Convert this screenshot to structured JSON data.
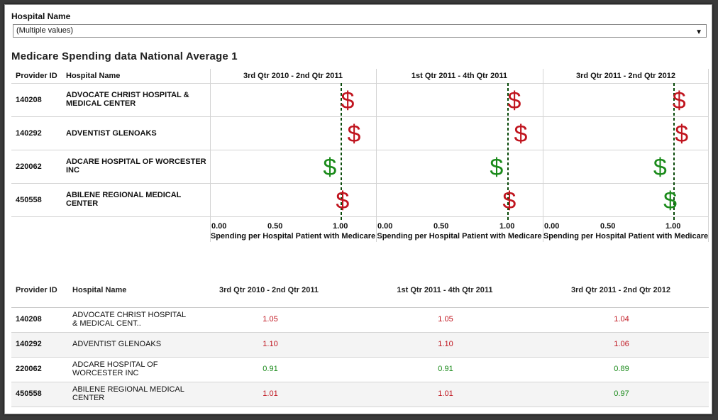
{
  "filter": {
    "label": "Hospital Name",
    "selected": "(Multiple values)"
  },
  "title": "Medicare Spending data National Average 1",
  "headers": {
    "provider_id": "Provider ID",
    "hospital_name": "Hospital Name"
  },
  "periods": [
    "3rd Qtr 2010 - 2nd Qtr 2011",
    "1st Qtr 2011 - 4th Qtr 2011",
    "3rd Qtr 2011 - 2nd Qtr 2012"
  ],
  "axis": {
    "label": "Spending per Hospital Patient with Medicare",
    "ticks": [
      "0.00",
      "0.50",
      "1.00"
    ]
  },
  "colors": {
    "above": "#c0141e",
    "below": "#1a8a1a",
    "refline": "#0a4a0a"
  },
  "chart_data": {
    "type": "scatter",
    "marker": "$",
    "reference_line": 1.0,
    "xlim": [
      0,
      1.0
    ],
    "xlabel": "Spending per Hospital Patient with Medicare",
    "categories": [
      "140208",
      "140292",
      "220062",
      "450558"
    ],
    "series": [
      {
        "name": "3rd Qtr 2010 - 2nd Qtr 2011",
        "values": [
          1.05,
          1.1,
          0.91,
          1.01
        ]
      },
      {
        "name": "1st Qtr 2011 - 4th Qtr 2011",
        "values": [
          1.05,
          1.1,
          0.91,
          1.01
        ]
      },
      {
        "name": "3rd Qtr 2011 - 2nd Qtr 2012",
        "values": [
          1.04,
          1.06,
          0.89,
          0.97
        ]
      }
    ]
  },
  "chart_rows": [
    {
      "id": "140208",
      "name": "ADVOCATE CHRIST HOSPITAL & MEDICAL CENTER"
    },
    {
      "id": "140292",
      "name": "ADVENTIST GLENOAKS"
    },
    {
      "id": "220062",
      "name": "ADCARE HOSPITAL OF WORCESTER INC"
    },
    {
      "id": "450558",
      "name": "ABILENE REGIONAL MEDICAL CENTER"
    }
  ],
  "table_rows": [
    {
      "id": "140208",
      "name": "ADVOCATE CHRIST HOSPITAL & MEDICAL CENT..",
      "values": [
        "1.05",
        "1.05",
        "1.04"
      ]
    },
    {
      "id": "140292",
      "name": "ADVENTIST GLENOAKS",
      "values": [
        "1.10",
        "1.10",
        "1.06"
      ]
    },
    {
      "id": "220062",
      "name": "ADCARE HOSPITAL OF WORCESTER INC",
      "values": [
        "0.91",
        "0.91",
        "0.89"
      ]
    },
    {
      "id": "450558",
      "name": "ABILENE REGIONAL MEDICAL CENTER",
      "values": [
        "1.01",
        "1.01",
        "0.97"
      ]
    }
  ]
}
